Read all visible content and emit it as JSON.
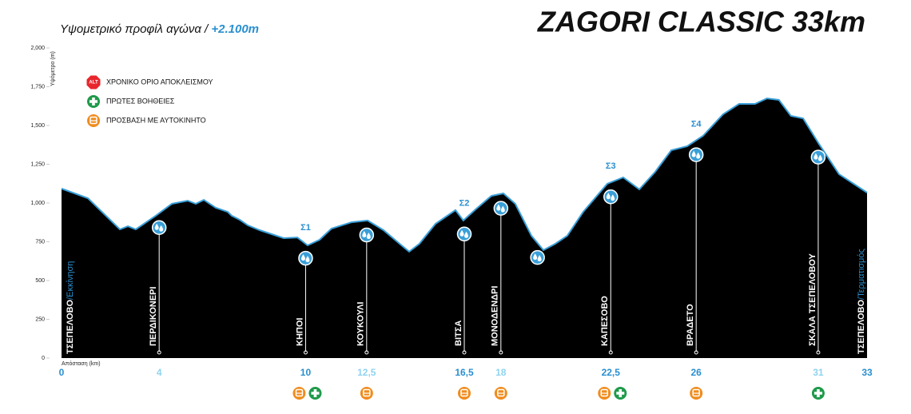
{
  "chart_data": {
    "type": "area",
    "title": "ZAGORI CLASSIC 33km",
    "subtitle": "Υψομετρικό προφίλ αγώνα / ",
    "subtitle_highlight": "+2.100m",
    "y_label": "Υψόμετρο (m)",
    "x_label": "Απόσταση (km)",
    "fill": "#000000",
    "color": "#3a9fd8",
    "x": [
      0,
      1.08,
      2.39,
      2.72,
      3.04,
      3.86,
      4.52,
      5.17,
      5.5,
      5.83,
      6.32,
      6.81,
      6.97,
      7.3,
      7.63,
      8.12,
      8.61,
      9.1,
      9.66,
      10.08,
      10.57,
      11.06,
      11.88,
      12.54,
      13.19,
      13.85,
      14.24,
      14.66,
      15.32,
      16.14,
      16.46,
      16.96,
      17.61,
      18.1,
      18.59,
      19.25,
      19.74,
      20.23,
      20.72,
      21.37,
      22.36,
      23.01,
      23.67,
      24.32,
      24.98,
      25.63,
      26.28,
      27.1,
      27.76,
      28.41,
      28.9,
      29.39,
      29.88,
      30.38,
      31.03,
      31.85,
      33
    ],
    "values": [
      1093,
      1031,
      830,
      850,
      830,
      918,
      995,
      1015,
      995,
      1020,
      969,
      943,
      918,
      892,
      856,
      825,
      799,
      773,
      778,
      727,
      763,
      835,
      876,
      887,
      825,
      737,
      686,
      737,
      866,
      954,
      887,
      959,
      1046,
      1062,
      995,
      789,
      696,
      737,
      789,
      943,
      1124,
      1165,
      1088,
      1201,
      1340,
      1366,
      1433,
      1572,
      1639,
      1639,
      1675,
      1665,
      1562,
      1546,
      1381,
      1186,
      1067
    ],
    "xlim": [
      0,
      33
    ],
    "ylim": [
      0,
      2000
    ],
    "yticks": [
      0,
      250,
      500,
      750,
      {
        "value": 1000,
        "label": "1,000"
      },
      {
        "value": 1250,
        "label": "1,250"
      },
      {
        "value": 1500,
        "label": "1,500"
      },
      {
        "value": 1750,
        "label": "1,750"
      },
      {
        "value": 2000,
        "label": "2,000"
      }
    ],
    "xticks": [
      0,
      4,
      10,
      {
        "value": 12.5,
        "label": "12,5"
      },
      {
        "value": 16.5,
        "label": "16,5"
      },
      18,
      {
        "value": 22.5,
        "label": "22,5"
      },
      26,
      31,
      33
    ],
    "xtick_colors": [
      "#2a8fd0",
      "#8fd3f0",
      "#2a8fd0",
      "#8fd3f0",
      "#2a8fd0",
      "#8fd3f0",
      "#2a8fd0",
      "#2a8fd0",
      "#8fd3f0",
      "#2a8fd0"
    ],
    "start": {
      "km": 0,
      "name": "ΤΣΕΠΕΛΟΒΟ",
      "note": "/Εκκίνηση"
    },
    "finish": {
      "km": 33,
      "name": "ΤΣΕΠΕΛΟΒΟ",
      "note": "/Τερματισμός"
    },
    "stations": [
      {
        "km": 4,
        "name": "ΠΕΡΔΙΚΟΝΕΡΙ"
      },
      {
        "km": 10,
        "name": "ΚΗΠΟΙ"
      },
      {
        "km": 12.5,
        "name": "ΚΟΥΚΟΥΛΙ"
      },
      {
        "km": 16.5,
        "name": "ΒΙΤΣΑ"
      },
      {
        "km": 18,
        "name": "ΜΟΝΟΔΕΝΔΡΙ"
      },
      {
        "km": 22.5,
        "name": "ΚΑΠΕΣΟΒΟ"
      },
      {
        "km": 26,
        "name": "ΒΡΑΔΕΤΟ"
      },
      {
        "km": 31,
        "name": "ΣΚΑΛΑ ΤΣΕΠΕΛΟΒΟΥ"
      }
    ],
    "water": [
      4,
      10,
      12.5,
      16.5,
      18,
      19.5,
      22.5,
      26,
      31
    ],
    "checkpoints": [
      {
        "label": "Σ1",
        "km": 10
      },
      {
        "label": "Σ2",
        "km": 16.5
      },
      {
        "label": "Σ3",
        "km": 22.5
      },
      {
        "label": "Σ4",
        "km": 26
      }
    ],
    "bus": [
      10,
      12.5,
      16.5,
      18,
      22.5,
      26
    ],
    "first_aid": [
      10,
      22.5,
      31
    ],
    "legend": [
      {
        "icon": "alt",
        "icon_text": "ALT",
        "label": "ΧΡΟΝΙΚΟ ΟΡΙΟ ΑΠΟΚΛΕΙΣΜΟΥ",
        "color": "#e8262b"
      },
      {
        "icon": "aid",
        "label": "ΠΡΩΤΕΣ ΒΟΗΘΕΙΕΣ",
        "color": "#1f9a4a"
      },
      {
        "icon": "bus",
        "label": "ΠΡΟΣΒΑΣΗ ΜΕ ΑΥΤΟΚΙΝΗΤΟ",
        "color": "#f08c1e"
      }
    ]
  }
}
